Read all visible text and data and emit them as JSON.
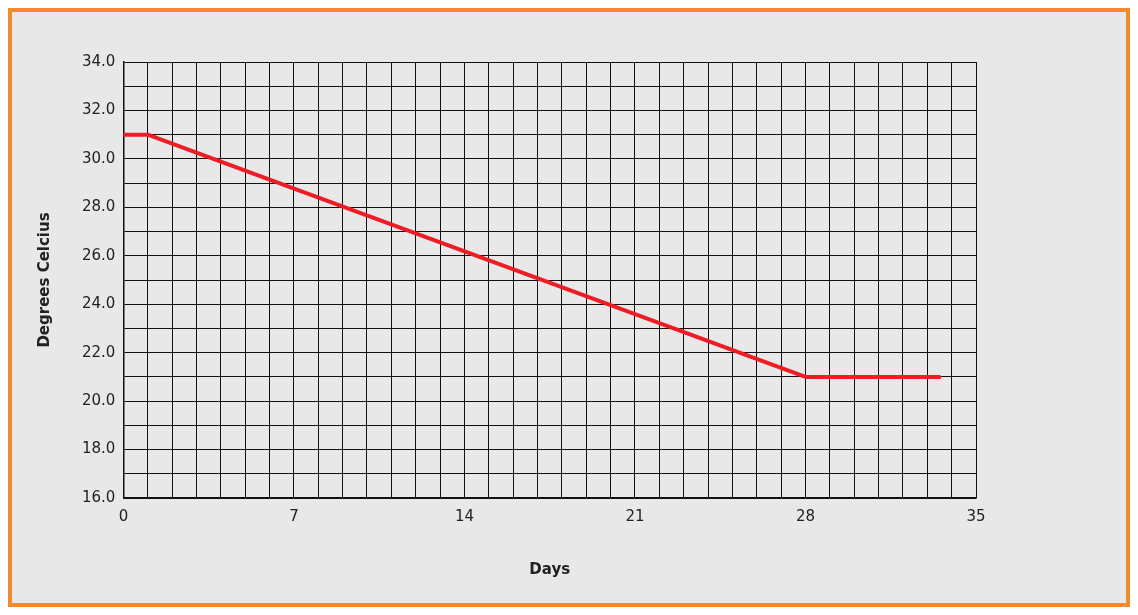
{
  "chart_data": {
    "type": "line",
    "xlabel": "Days",
    "ylabel": "Degrees Celcius",
    "x": [
      0,
      1,
      28,
      33.5
    ],
    "series": [
      {
        "color": "#ee1c25",
        "values": [
          31,
          31,
          21,
          21
        ]
      }
    ],
    "xlim": [
      0,
      35
    ],
    "xticks": [
      0,
      {
        "value": 1,
        "label": null
      },
      {
        "value": 2,
        "label": null
      },
      {
        "value": 3,
        "label": null
      },
      {
        "value": 4,
        "label": null
      },
      {
        "value": 5,
        "label": null
      },
      {
        "value": 6,
        "label": null
      },
      7,
      {
        "value": 8,
        "label": null
      },
      {
        "value": 9,
        "label": null
      },
      {
        "value": 10,
        "label": null
      },
      {
        "value": 11,
        "label": null
      },
      {
        "value": 12,
        "label": null
      },
      {
        "value": 13,
        "label": null
      },
      14,
      {
        "value": 15,
        "label": null
      },
      {
        "value": 16,
        "label": null
      },
      {
        "value": 17,
        "label": null
      },
      {
        "value": 18,
        "label": null
      },
      {
        "value": 19,
        "label": null
      },
      {
        "value": 20,
        "label": null
      },
      21,
      {
        "value": 22,
        "label": null
      },
      {
        "value": 23,
        "label": null
      },
      {
        "value": 24,
        "label": null
      },
      {
        "value": 25,
        "label": null
      },
      {
        "value": 26,
        "label": null
      },
      {
        "value": 27,
        "label": null
      },
      28,
      {
        "value": 29,
        "label": null
      },
      {
        "value": 30,
        "label": null
      },
      {
        "value": 31,
        "label": null
      },
      {
        "value": 32,
        "label": null
      },
      {
        "value": 33,
        "label": null
      },
      {
        "value": 34,
        "label": null
      },
      35
    ],
    "ylim": [
      16,
      34
    ],
    "yticks": [
      {
        "value": 16,
        "label": "16.0"
      },
      {
        "value": 17,
        "label": null
      },
      {
        "value": 18,
        "label": "18.0"
      },
      {
        "value": 19,
        "label": null
      },
      {
        "value": 20,
        "label": "20.0"
      },
      {
        "value": 21,
        "label": null
      },
      {
        "value": 22,
        "label": "22.0"
      },
      {
        "value": 23,
        "label": null
      },
      {
        "value": 24,
        "label": "24.0"
      },
      {
        "value": 25,
        "label": null
      },
      {
        "value": 26,
        "label": "26.0"
      },
      {
        "value": 27,
        "label": null
      },
      {
        "value": 28,
        "label": "28.0"
      },
      {
        "value": 29,
        "label": null
      },
      {
        "value": 30,
        "label": "30.0"
      },
      {
        "value": 31,
        "label": null
      },
      {
        "value": 32,
        "label": "32.0"
      },
      {
        "value": 33,
        "label": null
      },
      {
        "value": 34,
        "label": "34.0"
      }
    ],
    "grid": true,
    "legend": false,
    "marker": "none",
    "line_style": "solid"
  }
}
